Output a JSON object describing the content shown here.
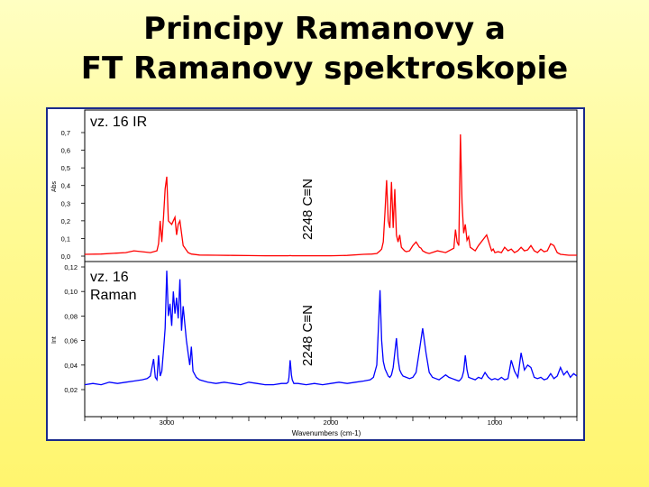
{
  "slide": {
    "title_line1": "Principy Ramanovy a",
    "title_line2": "FT Ramanovy spektroskopie"
  },
  "colors": {
    "frame": "#1a2a8c",
    "ir_series": "#ff0000",
    "raman_series": "#0000ff",
    "axis": "#000000"
  },
  "chart_data": [
    {
      "type": "line",
      "panel": "top",
      "annotation": "vz. 16 IR",
      "peak_label": "2248 C≡N",
      "ylabel": "Abs",
      "ylim": [
        0.0,
        0.7
      ],
      "yticks": [
        "0,7",
        "0,6",
        "0,5",
        "0,4",
        "0,3",
        "0,2",
        "0,1",
        "0,0"
      ],
      "xlim": [
        3500,
        500
      ],
      "x_reversed": true,
      "series": [
        {
          "x": [
            3500,
            3400,
            3250,
            3200,
            3100,
            3060,
            3050,
            3040,
            3030,
            3020,
            3010,
            3000,
            2990,
            2970,
            2950,
            2940,
            2930,
            2920,
            2900,
            2870,
            2850,
            2800,
            2700,
            2600,
            2500,
            2400,
            2300,
            2260,
            2248,
            2236,
            2200,
            2100,
            2000,
            1900,
            1800,
            1750,
            1720,
            1700,
            1690,
            1680,
            1670,
            1660,
            1650,
            1640,
            1630,
            1620,
            1610,
            1600,
            1590,
            1580,
            1570,
            1560,
            1550,
            1540,
            1520,
            1500,
            1480,
            1460,
            1450,
            1440,
            1420,
            1400,
            1350,
            1300,
            1250,
            1240,
            1230,
            1220,
            1210,
            1200,
            1190,
            1180,
            1170,
            1160,
            1150,
            1120,
            1100,
            1050,
            1030,
            1020,
            1010,
            1000,
            980,
            960,
            940,
            920,
            900,
            880,
            860,
            840,
            820,
            800,
            780,
            760,
            740,
            720,
            700,
            680,
            660,
            640,
            620,
            600,
            550,
            500
          ],
          "y": [
            0.01,
            0.012,
            0.02,
            0.03,
            0.02,
            0.03,
            0.07,
            0.2,
            0.08,
            0.22,
            0.38,
            0.45,
            0.2,
            0.18,
            0.22,
            0.12,
            0.18,
            0.2,
            0.06,
            0.02,
            0.012,
            0.006,
            0.005,
            0.004,
            0.003,
            0.002,
            0.002,
            0.002,
            0.003,
            0.002,
            0.002,
            0.002,
            0.002,
            0.004,
            0.01,
            0.012,
            0.015,
            0.03,
            0.04,
            0.08,
            0.25,
            0.43,
            0.2,
            0.16,
            0.42,
            0.16,
            0.38,
            0.12,
            0.08,
            0.12,
            0.05,
            0.04,
            0.03,
            0.025,
            0.03,
            0.06,
            0.08,
            0.05,
            0.045,
            0.03,
            0.02,
            0.015,
            0.03,
            0.02,
            0.045,
            0.15,
            0.08,
            0.06,
            0.69,
            0.3,
            0.13,
            0.18,
            0.09,
            0.11,
            0.05,
            0.03,
            0.06,
            0.12,
            0.06,
            0.03,
            0.04,
            0.02,
            0.025,
            0.02,
            0.05,
            0.03,
            0.04,
            0.02,
            0.03,
            0.05,
            0.03,
            0.035,
            0.06,
            0.03,
            0.02,
            0.04,
            0.025,
            0.03,
            0.07,
            0.06,
            0.02,
            0.01,
            0.005,
            0.005
          ]
        }
      ]
    },
    {
      "type": "line",
      "panel": "bottom",
      "annotation": "vz. 16 Raman",
      "peak_label": "2248 C≡N",
      "ylabel": "Int",
      "ylim": [
        0.02,
        0.12
      ],
      "yticks": [
        "0,12",
        "0,10",
        "0,08",
        "0,06",
        "0,04",
        "0,02"
      ],
      "xlabel": "Wavenumbers (cm-1)",
      "xticks": [
        3000,
        2000,
        1000
      ],
      "xlim": [
        3500,
        500
      ],
      "x_reversed": true,
      "series": [
        {
          "x": [
            3500,
            3450,
            3400,
            3350,
            3300,
            3250,
            3200,
            3150,
            3120,
            3100,
            3080,
            3070,
            3060,
            3050,
            3040,
            3030,
            3020,
            3010,
            3000,
            2990,
            2980,
            2970,
            2960,
            2950,
            2940,
            2930,
            2920,
            2910,
            2900,
            2880,
            2860,
            2850,
            2840,
            2820,
            2800,
            2750,
            2700,
            2650,
            2600,
            2550,
            2500,
            2450,
            2400,
            2350,
            2300,
            2270,
            2260,
            2255,
            2250,
            2248,
            2245,
            2240,
            2235,
            2225,
            2200,
            2150,
            2100,
            2050,
            2000,
            1950,
            1900,
            1850,
            1800,
            1760,
            1740,
            1720,
            1710,
            1700,
            1690,
            1680,
            1670,
            1660,
            1650,
            1640,
            1630,
            1620,
            1610,
            1600,
            1590,
            1580,
            1570,
            1560,
            1540,
            1520,
            1500,
            1480,
            1460,
            1440,
            1420,
            1400,
            1380,
            1360,
            1340,
            1320,
            1300,
            1280,
            1260,
            1240,
            1220,
            1210,
            1200,
            1190,
            1180,
            1170,
            1160,
            1140,
            1120,
            1100,
            1080,
            1060,
            1040,
            1020,
            1000,
            980,
            960,
            940,
            920,
            900,
            880,
            860,
            840,
            820,
            800,
            780,
            760,
            740,
            720,
            700,
            680,
            660,
            640,
            620,
            600,
            580,
            560,
            540,
            520,
            500
          ],
          "y": [
            0.024,
            0.025,
            0.024,
            0.026,
            0.025,
            0.026,
            0.027,
            0.028,
            0.029,
            0.031,
            0.045,
            0.03,
            0.028,
            0.048,
            0.031,
            0.035,
            0.052,
            0.07,
            0.117,
            0.08,
            0.09,
            0.072,
            0.1,
            0.082,
            0.095,
            0.078,
            0.11,
            0.068,
            0.088,
            0.06,
            0.04,
            0.055,
            0.035,
            0.03,
            0.028,
            0.026,
            0.025,
            0.026,
            0.025,
            0.024,
            0.026,
            0.025,
            0.024,
            0.024,
            0.025,
            0.025,
            0.026,
            0.03,
            0.04,
            0.044,
            0.04,
            0.032,
            0.028,
            0.025,
            0.025,
            0.024,
            0.025,
            0.024,
            0.025,
            0.026,
            0.025,
            0.026,
            0.027,
            0.028,
            0.03,
            0.04,
            0.07,
            0.101,
            0.06,
            0.043,
            0.037,
            0.034,
            0.031,
            0.03,
            0.032,
            0.038,
            0.05,
            0.062,
            0.045,
            0.036,
            0.033,
            0.031,
            0.03,
            0.029,
            0.03,
            0.034,
            0.052,
            0.07,
            0.05,
            0.034,
            0.03,
            0.029,
            0.028,
            0.03,
            0.032,
            0.03,
            0.029,
            0.028,
            0.027,
            0.028,
            0.03,
            0.035,
            0.048,
            0.036,
            0.03,
            0.029,
            0.028,
            0.03,
            0.029,
            0.034,
            0.03,
            0.028,
            0.029,
            0.028,
            0.03,
            0.028,
            0.029,
            0.044,
            0.035,
            0.03,
            0.05,
            0.036,
            0.04,
            0.038,
            0.03,
            0.029,
            0.03,
            0.028,
            0.029,
            0.033,
            0.029,
            0.031,
            0.038,
            0.032,
            0.035,
            0.03,
            0.033,
            0.031
          ]
        }
      ]
    }
  ]
}
